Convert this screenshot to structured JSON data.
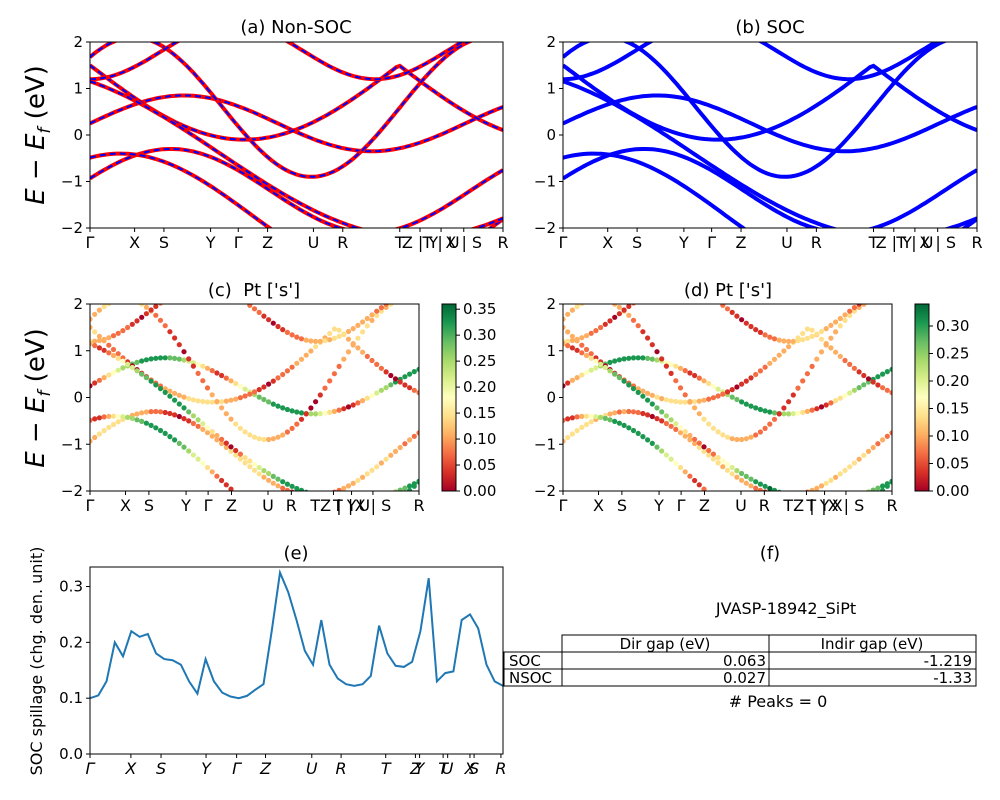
{
  "figure": {
    "colorbar_ticks": [
      "0.00",
      "0.05",
      "0.10",
      "0.15",
      "0.20",
      "0.25",
      "0.30",
      "0.35"
    ],
    "colorbar_ticks_d": [
      "0.00",
      "0.05",
      "0.10",
      "0.15",
      "0.20",
      "0.25",
      "0.30"
    ],
    "kpath_labels": [
      "Γ",
      "X",
      "S",
      "Y",
      "Γ",
      "Z",
      "U",
      "R",
      "T",
      "Z|Y",
      "T|U",
      "X|S",
      "R"
    ]
  },
  "chart_data": [
    {
      "id": "a",
      "type": "line",
      "title": "(a) Non-SOC",
      "ylabel": "E − E_f (eV)",
      "ylim": [
        -2,
        2
      ],
      "yticks": [
        -2,
        -1,
        0,
        1,
        2
      ],
      "xticks": [
        "Γ",
        "X",
        "S",
        "Y",
        "Γ",
        "Z",
        "U",
        "R",
        "T",
        "Z | Y",
        "T | U",
        "X | S",
        "R"
      ],
      "series_colors": [
        "#ff0000",
        "#0000ff"
      ],
      "note": "red bands overlaid with blue dashed bands"
    },
    {
      "id": "b",
      "type": "line",
      "title": "(b) SOC",
      "ylim": [
        -2,
        2
      ],
      "yticks": [
        -2,
        -1,
        0,
        1,
        2
      ],
      "xticks": [
        "Γ",
        "X",
        "S",
        "Y",
        "Γ",
        "Z",
        "U",
        "R",
        "T",
        "Z | Y",
        "T | U",
        "X | S",
        "R"
      ],
      "series_colors": [
        "#0000ff"
      ]
    },
    {
      "id": "c",
      "type": "scatter",
      "title": "(c)  Pt ['s']",
      "ylabel": "E − E_f (eV)",
      "ylim": [
        -2,
        2
      ],
      "yticks": [
        -2,
        -1,
        0,
        1,
        2
      ],
      "xticks": [
        "Γ",
        "X",
        "S",
        "Y",
        "Γ",
        "Z",
        "U",
        "R",
        "TZ | Y",
        "T | U",
        "X | S",
        "R"
      ],
      "colorbar": {
        "colormap": "RdYlGn",
        "range": [
          0.0,
          0.36
        ]
      }
    },
    {
      "id": "d",
      "type": "scatter",
      "title": "(d) Pt ['s']",
      "ylim": [
        -2,
        2
      ],
      "yticks": [
        -2,
        -1,
        0,
        1,
        2
      ],
      "xticks": [
        "Γ",
        "X",
        "S",
        "Y",
        "Γ",
        "Z",
        "U",
        "R",
        "TZ | Y",
        "T | X",
        "X | S",
        "R"
      ],
      "colorbar": {
        "colormap": "RdYlGn",
        "range": [
          0.0,
          0.34
        ]
      }
    },
    {
      "id": "e",
      "type": "line",
      "title": "(e)",
      "ylabel": "SOC spillage (chg. den. unit)",
      "ylim": [
        0.0,
        0.335
      ],
      "yticks": [
        0.0,
        0.1,
        0.2,
        0.3
      ],
      "xticks": [
        "Γ",
        "X",
        "S",
        "Y",
        "Γ",
        "Z",
        "U",
        "R",
        "T",
        "Z",
        "Y",
        "T",
        "U",
        "X",
        "S",
        "R"
      ],
      "color": "#1f77b4",
      "x": [
        0,
        2,
        4,
        6,
        8,
        10,
        12,
        14,
        16,
        18,
        20,
        22,
        24,
        26,
        28,
        30,
        32,
        34,
        36,
        38,
        40,
        42,
        44,
        46,
        48,
        50,
        52,
        54,
        56,
        58,
        60,
        62,
        64,
        66,
        68,
        70,
        72,
        74,
        76,
        78,
        80,
        82,
        84,
        86,
        88,
        90,
        92,
        94,
        96,
        98,
        100
      ],
      "values": [
        0.1,
        0.105,
        0.13,
        0.2,
        0.175,
        0.22,
        0.21,
        0.215,
        0.18,
        0.17,
        0.168,
        0.16,
        0.13,
        0.108,
        0.17,
        0.13,
        0.11,
        0.103,
        0.1,
        0.104,
        0.115,
        0.125,
        0.22,
        0.325,
        0.29,
        0.24,
        0.185,
        0.16,
        0.24,
        0.16,
        0.135,
        0.125,
        0.122,
        0.125,
        0.14,
        0.23,
        0.18,
        0.158,
        0.156,
        0.165,
        0.22,
        0.315,
        0.13,
        0.145,
        0.148,
        0.24,
        0.25,
        0.225,
        0.16,
        0.13,
        0.122
      ]
    },
    {
      "id": "f",
      "type": "table",
      "title": "(f)",
      "subtitle": "JVASP-18942_SiPt",
      "columns": [
        "Dir gap (eV)",
        "Indir gap (eV)"
      ],
      "rows": [
        {
          "label": "SOC",
          "dir": "0.063",
          "indir": "-1.219"
        },
        {
          "label": "NSOC",
          "dir": "0.027",
          "indir": "-1.33"
        }
      ],
      "footer": "# Peaks = 0"
    }
  ]
}
